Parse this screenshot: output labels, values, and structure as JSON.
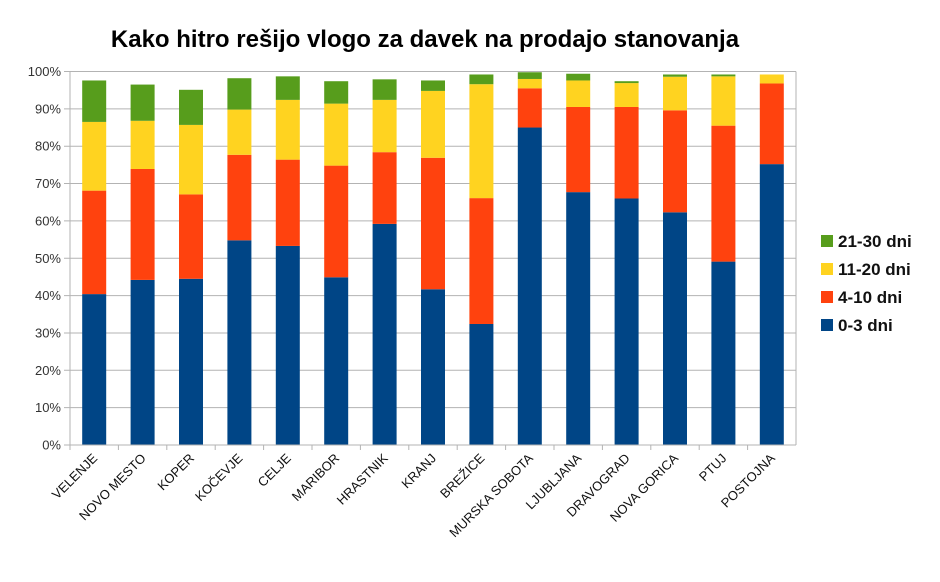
{
  "chart_data": {
    "type": "bar",
    "stacked": true,
    "title": "Kako hitro rešijo vlogo za davek na prodajo stanovanja",
    "xlabel": "",
    "ylabel": "",
    "ylim": [
      0,
      100
    ],
    "yticks": [
      "0%",
      "10%",
      "20%",
      "30%",
      "40%",
      "50%",
      "60%",
      "70%",
      "80%",
      "90%",
      "100%"
    ],
    "grid": true,
    "legend_position": "right",
    "categories": [
      "VELENJE",
      "NOVO MESTO",
      "KOPER",
      "KOČEVJE",
      "CELJE",
      "MARIBOR",
      "HRASTNIK",
      "KRANJ",
      "BREŽICE",
      "MURSKA SOBOTA",
      "LJUBLJANA",
      "DRAVOGRAD",
      "NOVA GORICA",
      "PTUJ",
      "POSTOJNA"
    ],
    "series": [
      {
        "name": "0-3 dni",
        "color": "#004586",
        "values": [
          40.4,
          44.2,
          44.5,
          54.8,
          53.3,
          44.9,
          59.2,
          41.7,
          32.4,
          85.0,
          67.7,
          66.0,
          62.3,
          49.1,
          75.2
        ]
      },
      {
        "name": "4-10 dni",
        "color": "#ff420e",
        "values": [
          27.7,
          29.7,
          22.6,
          22.9,
          23.1,
          29.9,
          19.2,
          35.2,
          33.7,
          10.5,
          22.8,
          24.5,
          27.3,
          36.4,
          21.6
        ]
      },
      {
        "name": "11-20 dni",
        "color": "#ffd320",
        "values": [
          18.4,
          12.9,
          18.6,
          12.1,
          16.0,
          16.6,
          14.0,
          17.9,
          30.5,
          2.5,
          7.1,
          6.4,
          9.0,
          13.2,
          2.4
        ]
      },
      {
        "name": "21-30 dni",
        "color": "#579d1c",
        "values": [
          11.1,
          9.7,
          9.4,
          8.4,
          6.3,
          6.0,
          5.5,
          2.8,
          2.6,
          1.8,
          1.8,
          0.5,
          0.6,
          0.5,
          0.0
        ]
      }
    ]
  }
}
